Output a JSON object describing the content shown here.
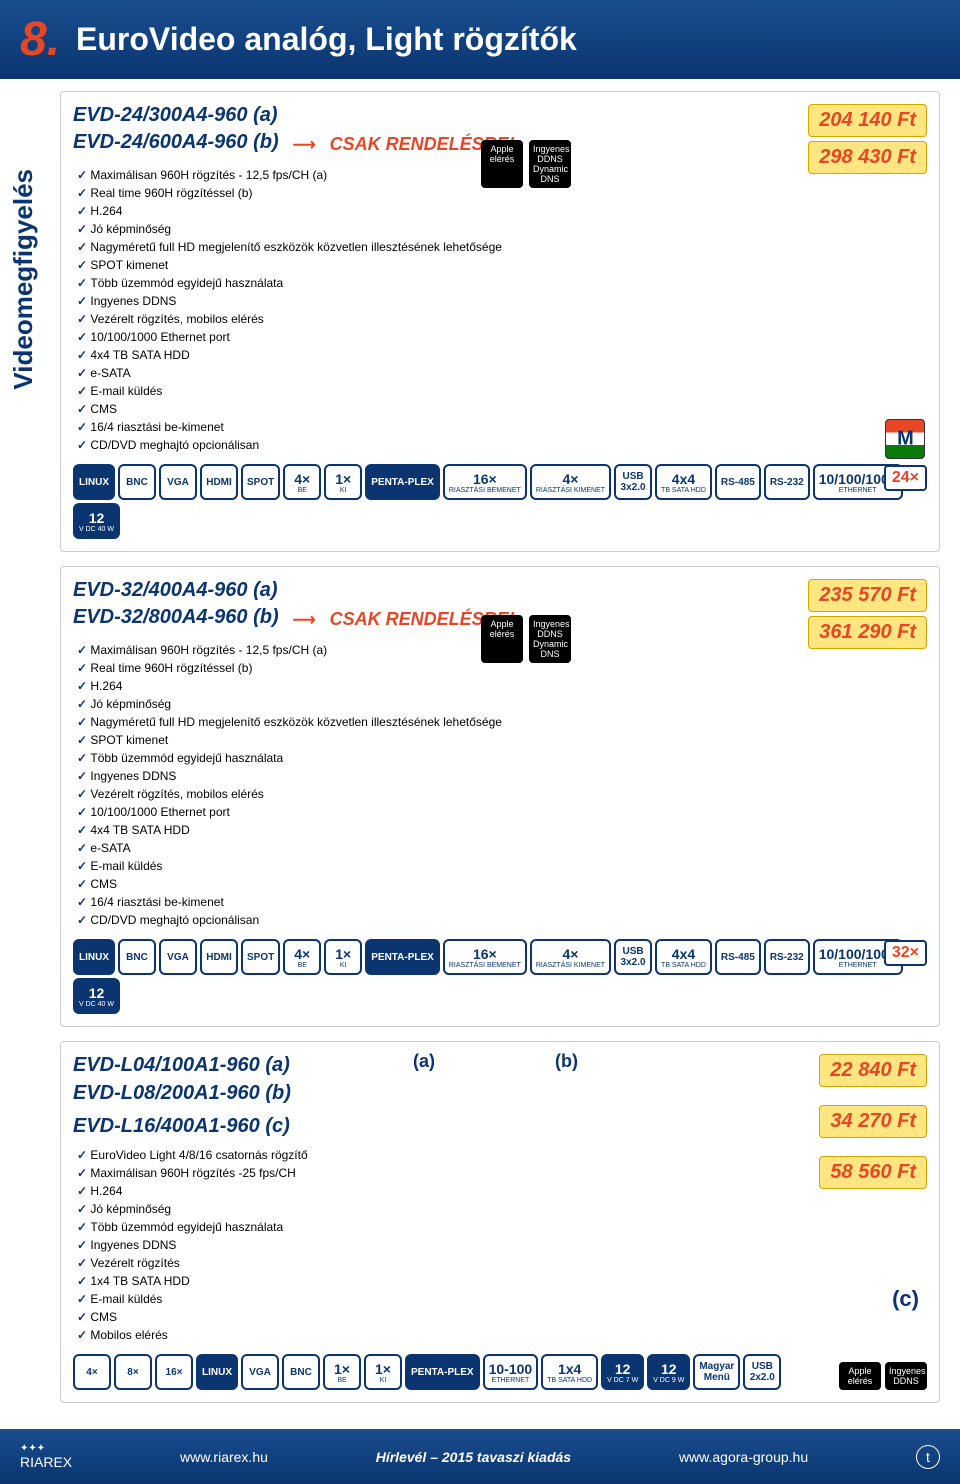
{
  "header": {
    "number": "8.",
    "title": "EuroVideo analóg, Light rögzítők"
  },
  "sidebar": "Videomegfigyelés",
  "block1": {
    "title_a": "EVD-24/300A4-960 (a)",
    "title_b": "EVD-24/600A4-960 (b)",
    "csak": "CSAK RENDELÉSRE!",
    "price_a": "204 140 Ft",
    "price_b": "298 430 Ft",
    "badge24": "24×",
    "features": [
      "Maximálisan 960H rögzítés - 12,5 fps/CH (a)",
      "Real time 960H rögzítéssel (b)",
      "H.264",
      "Jó képminőség",
      "Nagyméretű full HD megjelenítő eszközök közvetlen illesztésének lehetősége",
      "SPOT kimenet",
      "Több üzemmód egyidejű használata",
      "Ingyenes DDNS",
      "Vezérelt rögzítés, mobilos elérés",
      "10/100/1000 Ethernet port",
      "4x4 TB SATA HDD",
      "e-SATA",
      "E-mail küldés",
      "CMS",
      "16/4 riasztási be-kimenet",
      "CD/DVD meghajtó opcionálisan"
    ],
    "icons": [
      "LINUX",
      "BNC",
      "VGA",
      "HDMI",
      "SPOT",
      "4× BE",
      "1× KI",
      "PENTA-PLEX",
      "16× RIASZTÁSI BEMENET",
      "4× RIASZTÁSI KIMENET",
      "USB 3x2.0",
      "4x4 TB SATA HDD",
      "RS-485",
      "RS-232",
      "10/100/1000 ETHERNET",
      "12 V DC 40 W"
    ]
  },
  "block2": {
    "title_a": "EVD-32/400A4-960 (a)",
    "title_b": "EVD-32/800A4-960 (b)",
    "csak": "CSAK RENDELÉSRE!",
    "price_a": "235 570 Ft",
    "price_b": "361 290 Ft",
    "badge32": "32×",
    "features": [
      "Maximálisan 960H rögzítés - 12,5 fps/CH (a)",
      "Real time 960H rögzítéssel (b)",
      "H.264",
      "Jó képminőség",
      "Nagyméretű full HD megjelenítő eszközök közvetlen illesztésének lehetősége",
      "SPOT kimenet",
      "Több üzemmód egyidejű használata",
      "Ingyenes DDNS",
      "Vezérelt rögzítés, mobilos elérés",
      "10/100/1000 Ethernet port",
      "4x4 TB SATA HDD",
      "e-SATA",
      "E-mail küldés",
      "CMS",
      "16/4 riasztási be-kimenet",
      "CD/DVD meghajtó opcionálisan"
    ],
    "icons": [
      "LINUX",
      "BNC",
      "VGA",
      "HDMI",
      "SPOT",
      "4× BE",
      "1× KI",
      "PENTA-PLEX",
      "16× RIASZTÁSI BEMENET",
      "4× RIASZTÁSI KIMENET",
      "USB 3x2.0",
      "4x4 TB SATA HDD",
      "RS-485",
      "RS-232",
      "10/100/1000 ETHERNET",
      "12 V DC 40 W"
    ]
  },
  "block3": {
    "title_a": "EVD-L04/100A1-960 (a)",
    "title_b": "EVD-L08/200A1-960 (b)",
    "title_c": "EVD-L16/400A1-960 (c)",
    "label_a": "(a)",
    "label_b": "(b)",
    "label_c": "(c)",
    "price_a": "22 840 Ft",
    "price_b": "34 270 Ft",
    "price_c": "58 560 Ft",
    "features": [
      "EuroVideo Light 4/8/16 csatornás rögzítő",
      "Maximálisan 960H rögzítés -25 fps/CH",
      "H.264",
      "Jó képminőség",
      "Több üzemmód egyidejű használata",
      "Ingyenes DDNS",
      "Vezérelt rögzítés",
      "1x4 TB SATA HDD",
      "E-mail küldés",
      "CMS",
      "Mobilos elérés"
    ],
    "icons": [
      "4×",
      "8×",
      "16×",
      "LINUX",
      "VGA",
      "BNC",
      "1× BE",
      "1× KI",
      "PENTA-PLEX",
      "10-100 ETHERNET",
      "1x4 TB SATA HDD",
      "12 V DC 7 W",
      "12 V DC 9 W",
      "Magyar Menü",
      "USB 2x2.0"
    ],
    "ddns": [
      "Apple elérés",
      "Ingyenes DDNS"
    ]
  },
  "ddns_badges": {
    "apple": "Apple elérés",
    "ddns": "Ingyenes DDNS Dynamic DNS"
  },
  "footer": {
    "left": "www.riarex.hu",
    "center": "Hírlevél – 2015 tavaszi kiadás",
    "right": "www.agora-group.hu",
    "logo": "RIAREX"
  }
}
